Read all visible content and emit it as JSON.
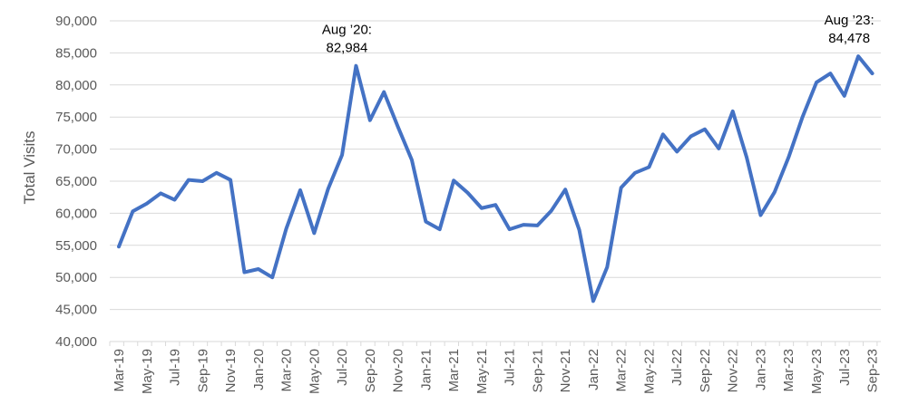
{
  "chart_data": {
    "type": "line",
    "title": "",
    "xlabel": "",
    "ylabel": "Total Visits",
    "ylim": [
      40000,
      90000
    ],
    "y_ticks": [
      40000,
      45000,
      50000,
      55000,
      60000,
      65000,
      70000,
      75000,
      80000,
      85000,
      90000
    ],
    "y_tick_labels": [
      "40,000",
      "45,000",
      "50,000",
      "55,000",
      "60,000",
      "65,000",
      "70,000",
      "75,000",
      "80,000",
      "85,000",
      "90,000"
    ],
    "grid": "horizontal",
    "x_tick_labels": [
      "Mar-19",
      "May-19",
      "Jul-19",
      "Sep-19",
      "Nov-19",
      "Jan-20",
      "Mar-20",
      "May-20",
      "Jul-20",
      "Sep-20",
      "Nov-20",
      "Jan-21",
      "Mar-21",
      "May-21",
      "Jul-21",
      "Sep-21",
      "Nov-21",
      "Jan-22",
      "Mar-22",
      "May-22",
      "Jul-22",
      "Sep-22",
      "Nov-22",
      "Jan-23",
      "Mar-23",
      "May-23",
      "Jul-23",
      "Sep-23"
    ],
    "categories": [
      "Mar-19",
      "Apr-19",
      "May-19",
      "Jun-19",
      "Jul-19",
      "Aug-19",
      "Sep-19",
      "Oct-19",
      "Nov-19",
      "Dec-19",
      "Jan-20",
      "Feb-20",
      "Mar-20",
      "Apr-20",
      "May-20",
      "Jun-20",
      "Jul-20",
      "Aug-20",
      "Sep-20",
      "Oct-20",
      "Nov-20",
      "Dec-20",
      "Jan-21",
      "Feb-21",
      "Mar-21",
      "Apr-21",
      "May-21",
      "Jun-21",
      "Jul-21",
      "Aug-21",
      "Sep-21",
      "Oct-21",
      "Nov-21",
      "Dec-21",
      "Jan-22",
      "Feb-22",
      "Mar-22",
      "Apr-22",
      "May-22",
      "Jun-22",
      "Jul-22",
      "Aug-22",
      "Sep-22",
      "Oct-22",
      "Nov-22",
      "Dec-22",
      "Jan-23",
      "Feb-23",
      "Mar-23",
      "Apr-23",
      "May-23",
      "Jun-23",
      "Jul-23",
      "Aug-23",
      "Sep-23"
    ],
    "series": [
      {
        "color": "#4472C4",
        "values": [
          54800,
          60300,
          61500,
          63100,
          62100,
          65200,
          65000,
          66300,
          65200,
          50800,
          51300,
          50000,
          57600,
          63600,
          56900,
          63800,
          69100,
          82984,
          74500,
          78900,
          73500,
          68300,
          58700,
          57500,
          65100,
          63200,
          60800,
          61300,
          57500,
          58200,
          58100,
          60400,
          63700,
          57400,
          46300,
          51600,
          64000,
          66300,
          67200,
          72300,
          69600,
          72000,
          73100,
          70100,
          75900,
          68700,
          59700,
          63300,
          68700,
          75000,
          80400,
          81800,
          78300,
          84478,
          81800
        ]
      }
    ],
    "annotations": [
      {
        "category": "Aug-20",
        "line1": "Aug ’20:",
        "line2": "82,984"
      },
      {
        "category": "Aug-23",
        "line1": "Aug ’23:",
        "line2": "84,478"
      }
    ]
  }
}
